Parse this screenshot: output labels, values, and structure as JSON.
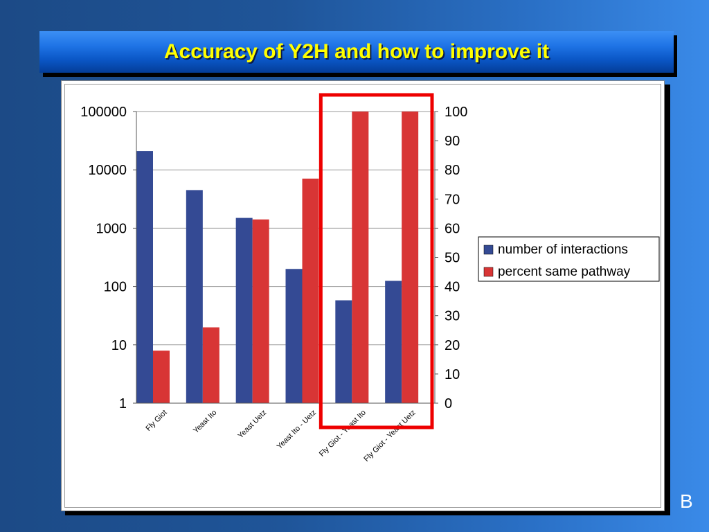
{
  "slide": {
    "title": "Accuracy of Y2H and how to improve it",
    "label": "B"
  },
  "colors": {
    "series_blue": "#344a94",
    "series_red": "#d83535",
    "highlight": "#ee0000",
    "title_text": "#ffff00"
  },
  "chart_data": {
    "type": "bar",
    "categories": [
      "Fly Giot",
      "Yeast Ito",
      "Yeast Uetz",
      "Yeast Ito - Uetz",
      "Fly Giot - Yeast Ito",
      "Fly Giot - Yeast Uetz"
    ],
    "series": [
      {
        "name": "number of interactions",
        "axis": "left",
        "values": [
          21000,
          4500,
          1500,
          200,
          58,
          125
        ]
      },
      {
        "name": "percent same pathway",
        "axis": "right",
        "values": [
          18,
          26,
          63,
          77,
          100,
          100
        ]
      }
    ],
    "left_axis": {
      "scale": "log",
      "ylim": [
        1,
        100000
      ],
      "ticks": [
        "1",
        "10",
        "100",
        "1000",
        "10000",
        "100000"
      ]
    },
    "right_axis": {
      "scale": "linear",
      "ylim": [
        0,
        100
      ],
      "ticks": [
        "0",
        "10",
        "20",
        "30",
        "40",
        "50",
        "60",
        "70",
        "80",
        "90",
        "100"
      ]
    },
    "grid": true,
    "legend_position": "right",
    "highlight_categories": [
      "Fly Giot - Yeast Ito",
      "Fly Giot - Yeast Uetz"
    ]
  }
}
